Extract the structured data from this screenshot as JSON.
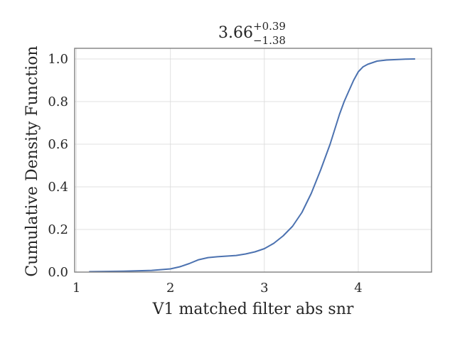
{
  "chart_data": {
    "type": "line",
    "title": {
      "value": "3.66",
      "upper": "+0.39",
      "lower": "−1.38"
    },
    "xlabel": "V1 matched filter abs snr",
    "ylabel": "Cumulative Density Function",
    "xlim": [
      0.98,
      4.78
    ],
    "ylim": [
      0.0,
      1.05
    ],
    "xticks": [
      1,
      2,
      3,
      4
    ],
    "xtick_labels": [
      "1",
      "2",
      "3",
      "4"
    ],
    "yticks": [
      0.0,
      0.2,
      0.4,
      0.6,
      0.8,
      1.0
    ],
    "ytick_labels": [
      "0.0",
      "0.2",
      "0.4",
      "0.6",
      "0.8",
      "1.0"
    ],
    "grid": true,
    "series": [
      {
        "color": "#4c72b0",
        "x": [
          1.14,
          1.5,
          1.8,
          2.0,
          2.1,
          2.2,
          2.3,
          2.4,
          2.5,
          2.6,
          2.7,
          2.8,
          2.9,
          3.0,
          3.1,
          3.2,
          3.3,
          3.4,
          3.5,
          3.6,
          3.7,
          3.75,
          3.8,
          3.85,
          3.9,
          3.95,
          4.0,
          4.05,
          4.1,
          4.2,
          4.3,
          4.5,
          4.6
        ],
        "y": [
          0.002,
          0.004,
          0.008,
          0.015,
          0.025,
          0.04,
          0.058,
          0.068,
          0.072,
          0.075,
          0.078,
          0.085,
          0.095,
          0.11,
          0.135,
          0.17,
          0.215,
          0.28,
          0.37,
          0.48,
          0.6,
          0.67,
          0.74,
          0.8,
          0.85,
          0.9,
          0.94,
          0.963,
          0.975,
          0.99,
          0.995,
          0.999,
          1.0
        ]
      }
    ]
  }
}
